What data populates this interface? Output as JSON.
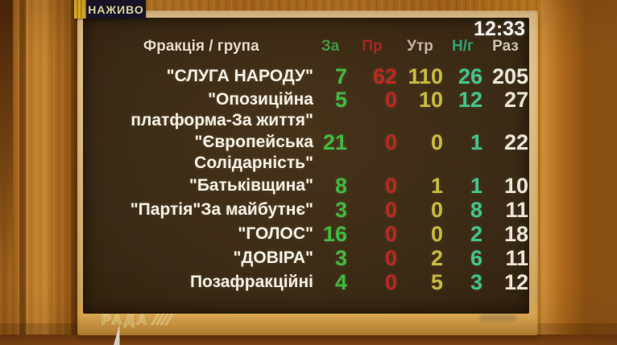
{
  "broadcast": {
    "live_badge": "НАЖИВО",
    "clock": "12:33",
    "channel_logo": "РАДА",
    "channel_logo_stripes": "////"
  },
  "board": {
    "header": {
      "faction": "Фракція / група",
      "za": "За",
      "pr": "Пр",
      "utr": "Утр",
      "ng": "Н/г",
      "raz": "Раз"
    },
    "rows": [
      {
        "name": "\"СЛУГА НАРОДУ\"",
        "name2": "",
        "za": "7",
        "pr": "62",
        "utr": "110",
        "ng": "26",
        "raz": "205"
      },
      {
        "name": "\"Опозиційна",
        "name2": "платформа-За життя\"",
        "za": "5",
        "pr": "0",
        "utr": "10",
        "ng": "12",
        "raz": "27"
      },
      {
        "name": "\"Європейська",
        "name2": "Солідарність\"",
        "za": "21",
        "pr": "0",
        "utr": "0",
        "ng": "1",
        "raz": "22"
      },
      {
        "name": "\"Батьківщина\"",
        "name2": "",
        "za": "8",
        "pr": "0",
        "utr": "1",
        "ng": "1",
        "raz": "10"
      },
      {
        "name": "\"Партія\"За майбутнє\"",
        "name2": "",
        "za": "3",
        "pr": "0",
        "utr": "0",
        "ng": "8",
        "raz": "11"
      },
      {
        "name": "\"ГОЛОС\"",
        "name2": "",
        "za": "16",
        "pr": "0",
        "utr": "0",
        "ng": "2",
        "raz": "18"
      },
      {
        "name": "\"ДОВІРА\"",
        "name2": "",
        "za": "3",
        "pr": "0",
        "utr": "2",
        "ng": "6",
        "raz": "11"
      },
      {
        "name": "Позафракційні",
        "name2": "",
        "za": "4",
        "pr": "0",
        "utr": "5",
        "ng": "3",
        "raz": "12"
      }
    ],
    "colors": {
      "green": "#3fbb3f",
      "red": "#c1271f",
      "yellow": "#c9ba3e",
      "teal": "#3fc68b",
      "white": "#eae4d6",
      "green-dim": "#3f9e42",
      "red-dim": "#a82a22",
      "pink-dim": "#c9b6ab",
      "teal-dim": "#35a678",
      "white-dim": "#cfc8b8"
    }
  }
}
